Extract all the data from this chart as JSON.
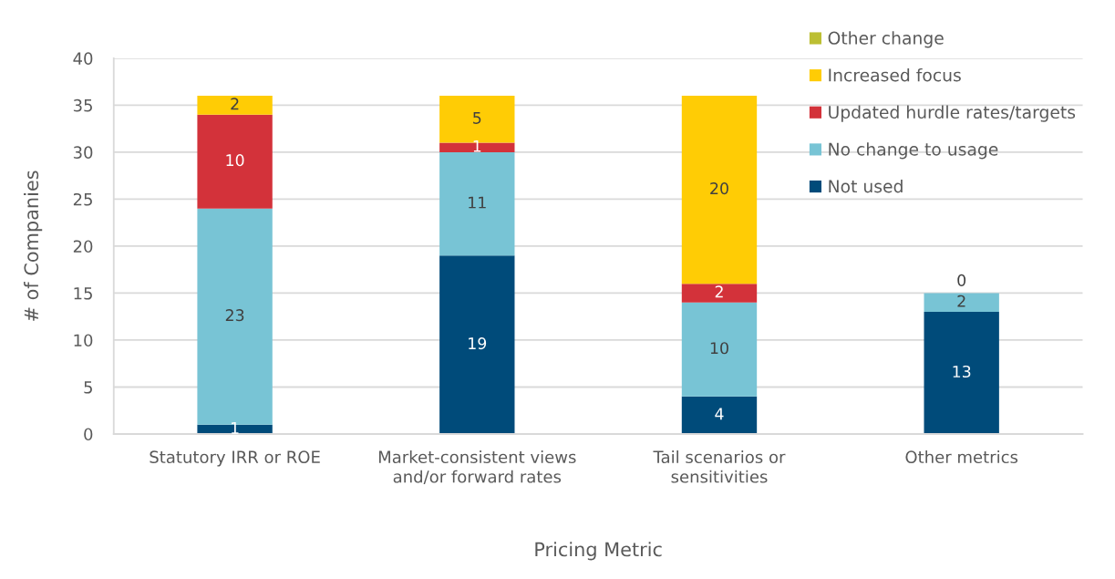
{
  "chart_data": {
    "type": "bar",
    "stacked": true,
    "xlabel": "Pricing Metric",
    "ylabel": "# of Companies",
    "categories": [
      "Statutory IRR or ROE",
      "Market-consistent views\nand/or forward rates",
      "Tail scenarios or\nsensitivities",
      "Other metrics"
    ],
    "series": [
      {
        "name": "Not used",
        "color": "#004b7a",
        "values": [
          1,
          19,
          4,
          13
        ],
        "value_labels": [
          "1",
          "19",
          "4",
          "13"
        ]
      },
      {
        "name": "No change to usage",
        "color": "#78c4d5",
        "values": [
          23,
          11,
          10,
          2
        ],
        "value_labels": [
          "23",
          "11",
          "10",
          "2"
        ]
      },
      {
        "name": "Updated hurdle rates/targets",
        "color": "#d3323a",
        "values": [
          10,
          1,
          2,
          0
        ],
        "value_labels": [
          "10",
          "1",
          "2",
          null
        ]
      },
      {
        "name": "Increased focus",
        "color": "#ffcc05",
        "values": [
          2,
          5,
          20,
          0
        ],
        "value_labels": [
          "2",
          "5",
          "20",
          "0"
        ]
      },
      {
        "name": "Other change",
        "color": "#bcbf33",
        "values": [
          0,
          0,
          0,
          0
        ]
      }
    ],
    "ylim": [
      0,
      40
    ],
    "yticks": [
      0,
      5,
      10,
      15,
      20,
      25,
      30,
      35,
      40
    ],
    "grid": "y",
    "legend": "top right"
  }
}
